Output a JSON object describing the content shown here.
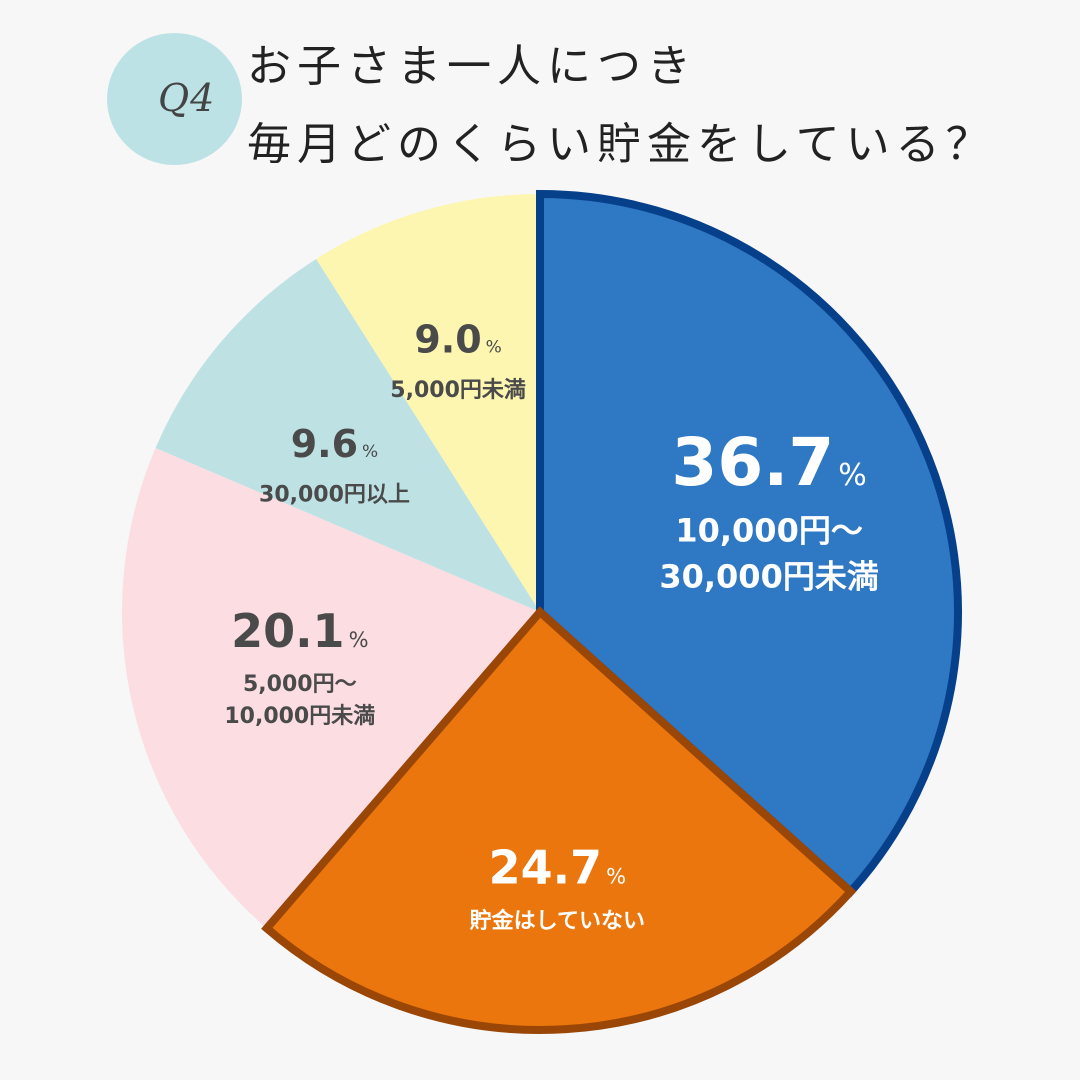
{
  "header": {
    "q_label": "Q4",
    "title_line_1": "お子さま一人につき",
    "title_line_2": "毎月どのくらい貯金をしている？"
  },
  "chart_data": {
    "type": "pie",
    "title": "お子さま一人につき 毎月どのくらい貯金をしている？",
    "unit": "%",
    "slices": [
      {
        "value": "36.7",
        "label_lines": [
          "10,000円〜",
          "30,000円未満"
        ],
        "color": "#2f78c4",
        "border": "#07408a",
        "text_color": "#ffffff",
        "highlight": true
      },
      {
        "value": "24.7",
        "label_lines": [
          "貯金はしていない"
        ],
        "color": "#ea760d",
        "border": "#9a4607",
        "text_color": "#ffffff",
        "highlight": true
      },
      {
        "value": "20.1",
        "label_lines": [
          "5,000円〜",
          "10,000円未満"
        ],
        "color": "#fbdde2",
        "border": null,
        "text_color": "#4a4a4a",
        "highlight": false
      },
      {
        "value": "9.6",
        "label_lines": [
          "30,000円以上"
        ],
        "color": "#bee2e4",
        "border": null,
        "text_color": "#4a4a4a",
        "highlight": false
      },
      {
        "value": "9.0",
        "label_lines": [
          "5,000円未満"
        ],
        "color": "#fdf6b1",
        "border": null,
        "text_color": "#4a4a4a",
        "highlight": false
      }
    ]
  }
}
